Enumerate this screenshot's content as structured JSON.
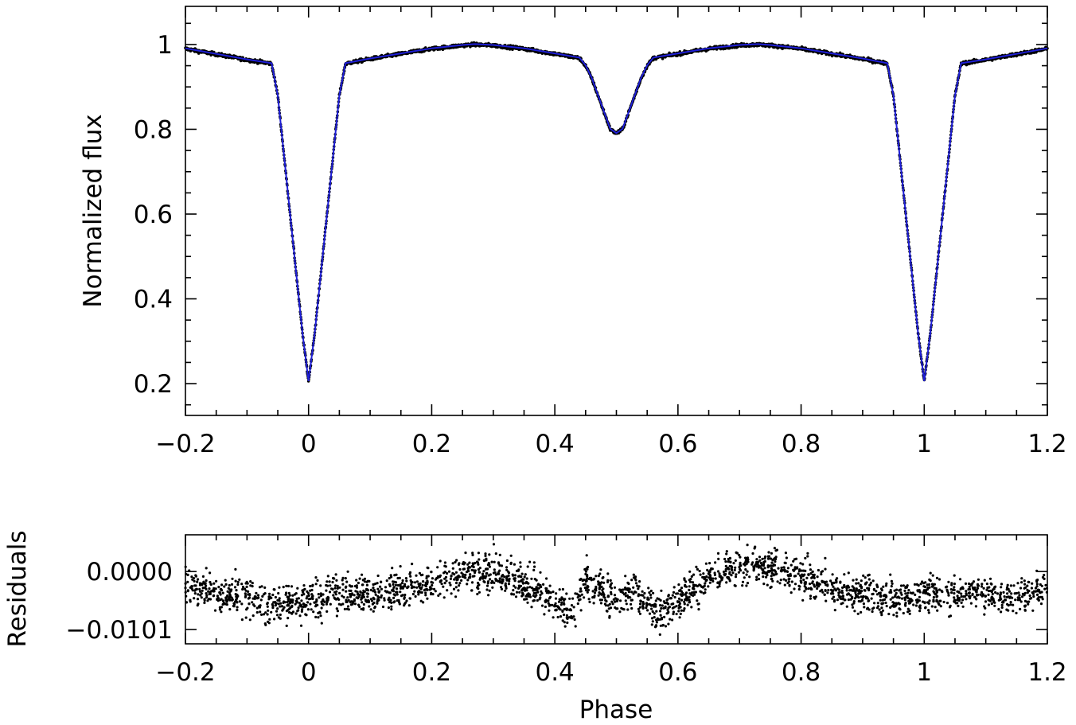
{
  "chart_data": [
    {
      "type": "line",
      "panel": "light-curve",
      "title": "",
      "xlabel": "",
      "ylabel": "Normalized flux",
      "xlim": [
        -0.2,
        1.2
      ],
      "ylim": [
        0.125,
        1.09
      ],
      "x_ticks": [
        -0.2,
        0,
        0.2,
        0.4,
        0.6,
        0.8,
        1,
        1.2
      ],
      "x_tick_labels": [
        "−0.2",
        "0",
        "0.2",
        "0.4",
        "0.6",
        "0.8",
        "1",
        "1.2"
      ],
      "y_ticks": [
        0.2,
        0.4,
        0.6,
        0.8,
        1
      ],
      "y_tick_labels": [
        "0.2",
        "0.4",
        "0.6",
        "0.8",
        "1"
      ],
      "grid": false,
      "legend": "none",
      "series": [
        {
          "role": "observed",
          "color": "#000000",
          "marker": "dots",
          "x": [
            -0.2,
            -0.15,
            -0.1,
            -0.06,
            -0.05,
            -0.04,
            -0.03,
            -0.02,
            -0.01,
            0,
            0.01,
            0.02,
            0.03,
            0.04,
            0.05,
            0.06,
            0.1,
            0.15,
            0.2,
            0.25,
            0.27,
            0.3,
            0.35,
            0.4,
            0.44,
            0.45,
            0.46,
            0.47,
            0.48,
            0.49,
            0.5,
            0.51,
            0.52,
            0.53,
            0.54,
            0.55,
            0.56,
            0.6,
            0.65,
            0.7,
            0.73,
            0.75,
            0.8,
            0.85,
            0.9,
            0.94,
            0.95,
            0.96,
            0.97,
            0.98,
            0.99,
            1,
            1.01,
            1.02,
            1.03,
            1.04,
            1.05,
            1.06,
            1.1,
            1.15,
            1.2
          ],
          "y": [
            0.99,
            0.977,
            0.964,
            0.955,
            0.88,
            0.74,
            0.6,
            0.46,
            0.32,
            0.205,
            0.32,
            0.46,
            0.6,
            0.74,
            0.88,
            0.955,
            0.966,
            0.978,
            0.99,
            0.998,
            1.0,
            0.998,
            0.99,
            0.978,
            0.968,
            0.95,
            0.92,
            0.88,
            0.84,
            0.8,
            0.79,
            0.8,
            0.84,
            0.88,
            0.92,
            0.95,
            0.968,
            0.978,
            0.99,
            0.998,
            1.0,
            0.998,
            0.99,
            0.978,
            0.966,
            0.955,
            0.88,
            0.74,
            0.6,
            0.46,
            0.32,
            0.205,
            0.32,
            0.46,
            0.6,
            0.74,
            0.88,
            0.955,
            0.964,
            0.977,
            0.99
          ]
        },
        {
          "role": "model",
          "color": "#1f1fd6",
          "marker": "line",
          "x": [
            -0.2,
            -0.15,
            -0.1,
            -0.06,
            -0.05,
            -0.04,
            -0.03,
            -0.02,
            -0.01,
            0,
            0.01,
            0.02,
            0.03,
            0.04,
            0.05,
            0.06,
            0.1,
            0.15,
            0.2,
            0.25,
            0.27,
            0.3,
            0.35,
            0.4,
            0.44,
            0.45,
            0.46,
            0.47,
            0.48,
            0.49,
            0.5,
            0.51,
            0.52,
            0.53,
            0.54,
            0.55,
            0.56,
            0.6,
            0.65,
            0.7,
            0.73,
            0.75,
            0.8,
            0.85,
            0.9,
            0.94,
            0.95,
            0.96,
            0.97,
            0.98,
            0.99,
            1,
            1.01,
            1.02,
            1.03,
            1.04,
            1.05,
            1.06,
            1.1,
            1.15,
            1.2
          ],
          "y": [
            0.991,
            0.978,
            0.965,
            0.956,
            0.88,
            0.74,
            0.6,
            0.46,
            0.32,
            0.206,
            0.32,
            0.46,
            0.6,
            0.74,
            0.88,
            0.956,
            0.967,
            0.979,
            0.991,
            0.999,
            1.001,
            0.999,
            0.991,
            0.979,
            0.969,
            0.951,
            0.921,
            0.881,
            0.841,
            0.801,
            0.791,
            0.801,
            0.841,
            0.881,
            0.921,
            0.951,
            0.969,
            0.979,
            0.991,
            0.999,
            1.001,
            0.999,
            0.991,
            0.979,
            0.967,
            0.956,
            0.88,
            0.74,
            0.6,
            0.46,
            0.32,
            0.206,
            0.32,
            0.46,
            0.6,
            0.74,
            0.88,
            0.956,
            0.965,
            0.978,
            0.991
          ]
        }
      ]
    },
    {
      "type": "scatter",
      "panel": "residuals",
      "title": "",
      "xlabel": "Phase",
      "ylabel": "Residuals",
      "xlim": [
        -0.2,
        1.2
      ],
      "ylim": [
        -0.0126,
        0.0064
      ],
      "x_ticks": [
        -0.2,
        0,
        0.2,
        0.4,
        0.6,
        0.8,
        1,
        1.2
      ],
      "x_tick_labels": [
        "−0.2",
        "0",
        "0.2",
        "0.4",
        "0.6",
        "0.8",
        "1",
        "1.2"
      ],
      "y_ticks": [
        0.0,
        -0.0101
      ],
      "y_tick_labels": [
        "0.0000",
        "−0.0101"
      ],
      "grid": false,
      "legend": "none",
      "series": [
        {
          "role": "residuals",
          "color": "#000000",
          "x": [
            -0.2,
            -0.15,
            -0.1,
            -0.05,
            0,
            0.05,
            0.1,
            0.15,
            0.2,
            0.25,
            0.3,
            0.35,
            0.4,
            0.43,
            0.45,
            0.47,
            0.5,
            0.53,
            0.55,
            0.57,
            0.6,
            0.65,
            0.7,
            0.75,
            0.8,
            0.85,
            0.9,
            0.95,
            1,
            1.05,
            1.1,
            1.15,
            1.2
          ],
          "y": [
            -0.002,
            -0.004,
            -0.0045,
            -0.006,
            -0.005,
            -0.004,
            -0.004,
            -0.003,
            -0.002,
            -0.0005,
            0.0,
            -0.002,
            -0.005,
            -0.007,
            -0.001,
            -0.003,
            -0.005,
            -0.003,
            -0.006,
            -0.007,
            -0.005,
            -0.001,
            0.001,
            0.001,
            -0.001,
            -0.003,
            -0.004,
            -0.005,
            -0.004,
            -0.004,
            -0.004,
            -0.0045,
            -0.003
          ]
        }
      ]
    }
  ]
}
